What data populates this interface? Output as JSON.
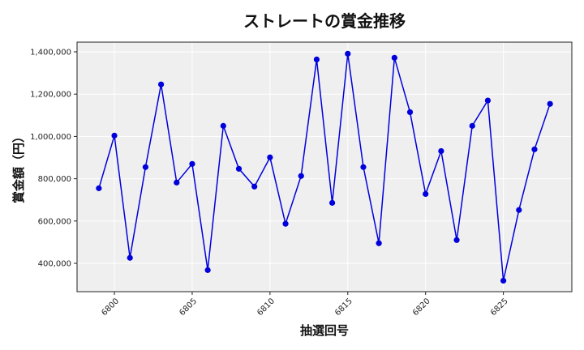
{
  "chart_data": {
    "type": "line",
    "title": "ストレートの賞金推移",
    "xlabel": "抽選回号",
    "ylabel": "賞金額（円）",
    "x": [
      6799,
      6800,
      6801,
      6802,
      6803,
      6804,
      6805,
      6806,
      6807,
      6808,
      6809,
      6810,
      6811,
      6812,
      6813,
      6814,
      6815,
      6816,
      6817,
      6818,
      6819,
      6820,
      6821,
      6822,
      6823,
      6824,
      6825,
      6826,
      6827,
      6828
    ],
    "series": [
      {
        "name": "ストレート",
        "color": "#0000dd",
        "values": [
          755000,
          1004000,
          426000,
          855000,
          1246000,
          782000,
          870000,
          368000,
          1050000,
          847000,
          763000,
          901000,
          587000,
          813000,
          1364000,
          686000,
          1391000,
          855000,
          495000,
          1372000,
          1115000,
          728000,
          931000,
          510000,
          1050000,
          1170000,
          318000,
          652000,
          939000,
          1154000
        ]
      }
    ],
    "xticks": [
      6800,
      6805,
      6810,
      6815,
      6820,
      6825
    ],
    "xtick_labels": [
      "6800",
      "6805",
      "6810",
      "6815",
      "6820",
      "6825"
    ],
    "yticks": [
      400000,
      600000,
      800000,
      1000000,
      1200000,
      1400000
    ],
    "ytick_labels": [
      "400,000",
      "600,000",
      "800,000",
      "1,000,000",
      "1,200,000",
      "1,400,000"
    ],
    "xlim": [
      6797.6,
      6829.4
    ],
    "ylim": [
      266000,
      1446000
    ],
    "grid": true,
    "legend": null,
    "background": "#efefef",
    "marker": "circle"
  }
}
